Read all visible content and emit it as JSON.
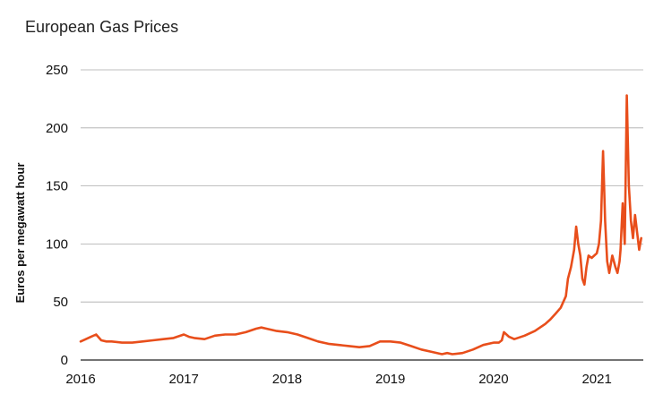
{
  "chart_data": {
    "type": "line",
    "title": "European Gas Prices",
    "xlabel": "",
    "ylabel": "Euros per megawatt hour",
    "xlim": [
      2016,
      2021.45
    ],
    "ylim": [
      0,
      250
    ],
    "x_ticks": [
      "2016",
      "2017",
      "2018",
      "2019",
      "2020",
      "2021"
    ],
    "y_ticks": [
      "0",
      "50",
      "100",
      "150",
      "200",
      "250"
    ],
    "grid": "horizontal",
    "legend": "none",
    "colors": {
      "line": "#e84e1b",
      "grid": "#aaaaaa",
      "axis": "#222222"
    },
    "series": [
      {
        "x": [
          2016.0,
          2016.05,
          2016.1,
          2016.15,
          2016.2,
          2016.25,
          2016.3,
          2016.4,
          2016.5,
          2016.6,
          2016.7,
          2016.8,
          2016.9,
          2017.0,
          2017.05,
          2017.1,
          2017.2,
          2017.3,
          2017.4,
          2017.5,
          2017.6,
          2017.7,
          2017.75,
          2017.8,
          2017.9,
          2018.0,
          2018.1,
          2018.2,
          2018.3,
          2018.4,
          2018.5,
          2018.6,
          2018.7,
          2018.8,
          2018.9,
          2019.0,
          2019.1,
          2019.2,
          2019.3,
          2019.4,
          2019.5,
          2019.55,
          2019.6,
          2019.7,
          2019.8,
          2019.9,
          2020.0,
          2020.05,
          2020.08,
          2020.1,
          2020.15,
          2020.2,
          2020.3,
          2020.4,
          2020.5,
          2020.55,
          2020.6,
          2020.65,
          2020.7,
          2020.72,
          2020.75,
          2020.78,
          2020.8,
          2020.82,
          2020.84,
          2020.86,
          2020.88,
          2020.9,
          2020.92,
          2020.95,
          2021.0,
          2021.02,
          2021.04,
          2021.06,
          2021.08,
          2021.1,
          2021.12,
          2021.15,
          2021.18,
          2021.2,
          2021.22,
          2021.23,
          2021.25,
          2021.27,
          2021.29,
          2021.31,
          2021.33,
          2021.35,
          2021.37,
          2021.39,
          2021.41,
          2021.43
        ],
        "y": [
          16,
          18,
          20,
          22,
          17,
          16,
          16,
          15,
          15,
          16,
          17,
          18,
          19,
          22,
          20,
          19,
          18,
          21,
          22,
          22,
          24,
          27,
          28,
          27,
          25,
          24,
          22,
          19,
          16,
          14,
          13,
          12,
          11,
          12,
          16,
          16,
          15,
          12,
          9,
          7,
          5,
          6,
          5,
          6,
          9,
          13,
          15,
          15,
          17,
          24,
          20,
          18,
          21,
          25,
          31,
          35,
          40,
          45,
          55,
          70,
          80,
          95,
          115,
          100,
          90,
          70,
          65,
          80,
          90,
          88,
          92,
          100,
          120,
          180,
          120,
          85,
          75,
          90,
          80,
          75,
          85,
          95,
          135,
          100,
          228,
          150,
          120,
          105,
          125,
          110,
          95,
          105
        ]
      }
    ]
  }
}
